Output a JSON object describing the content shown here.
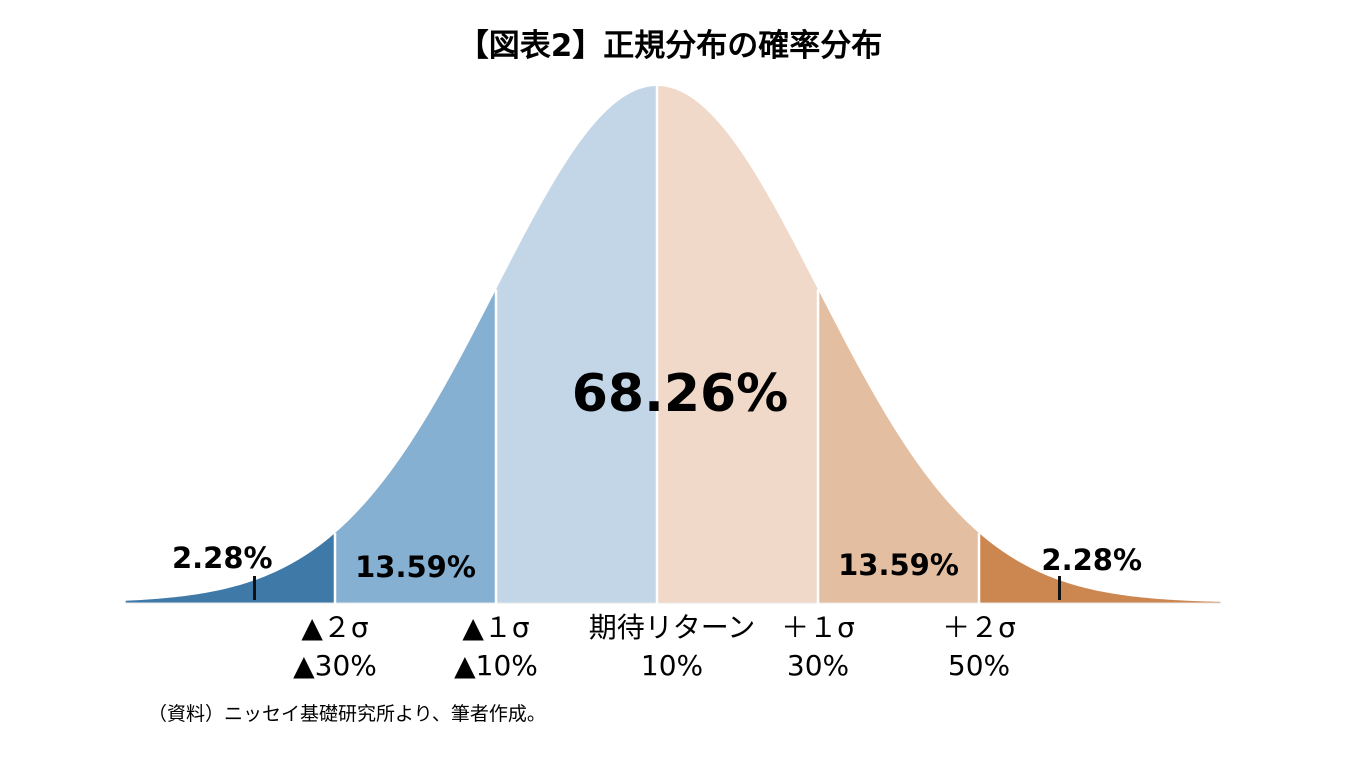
{
  "chart_data": {
    "type": "area",
    "title": "【図表2】正規分布の確率分布",
    "distribution": "normal",
    "x_range_sigma": [
      -3.3,
      3.5
    ],
    "segments": [
      {
        "from_sigma": -3.3,
        "to_sigma": -2,
        "probability_label": "2.28%",
        "color": "#3f79a8"
      },
      {
        "from_sigma": -2,
        "to_sigma": -1,
        "probability_label": "13.59%",
        "color": "#86b0d2"
      },
      {
        "from_sigma": -1,
        "to_sigma": 0,
        "probability_label": "",
        "color": "#c2d6e7"
      },
      {
        "from_sigma": 0,
        "to_sigma": 1,
        "probability_label": "",
        "color": "#f0d9c9"
      },
      {
        "from_sigma": 1,
        "to_sigma": 2,
        "probability_label": "13.59%",
        "color": "#e3bea1"
      },
      {
        "from_sigma": 2,
        "to_sigma": 3.5,
        "probability_label": "2.28%",
        "color": "#cc8650"
      }
    ],
    "center_label": "68.26%",
    "x_ticks": [
      {
        "sigma": -2,
        "label": "▲２σ",
        "return": "▲30%"
      },
      {
        "sigma": -1,
        "label": "▲１σ",
        "return": "▲10%"
      },
      {
        "sigma": 0,
        "label": "期待リターン",
        "return": "10%"
      },
      {
        "sigma": 1,
        "label": "＋１σ",
        "return": "30%"
      },
      {
        "sigma": 2,
        "label": "＋２σ",
        "return": "50%"
      }
    ],
    "tail_markers_sigma": [
      -2.5,
      2.5
    ],
    "source": "（資料）ニッセイ基礎研究所より、筆者作成。"
  }
}
